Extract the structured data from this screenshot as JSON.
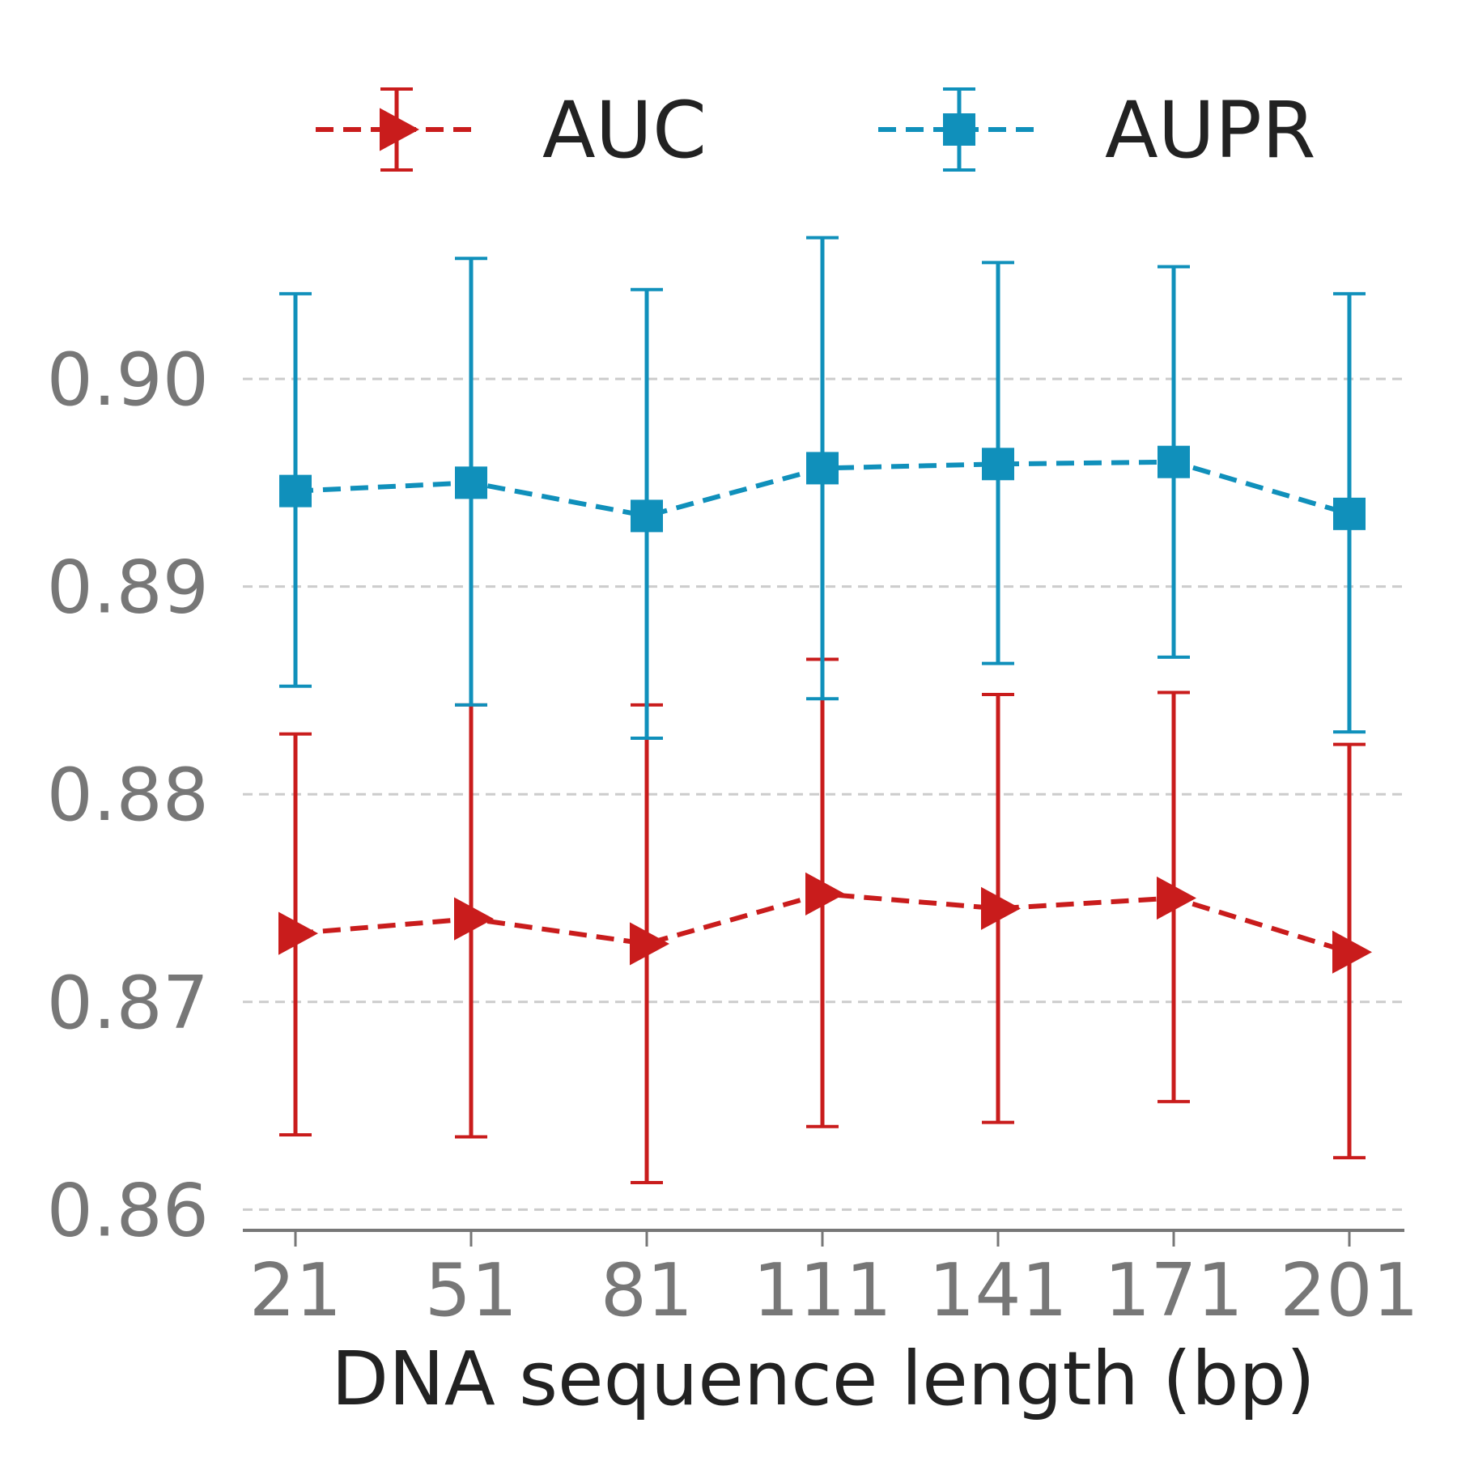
{
  "chart_data": {
    "type": "line",
    "xlabel": "DNA sequence length (bp)",
    "ylabel": "",
    "categories": [
      "21",
      "51",
      "81",
      "111",
      "141",
      "171",
      "201"
    ],
    "ylim": [
      0.859,
      0.9085
    ],
    "yticks": [
      "0.86",
      "0.87",
      "0.88",
      "0.89",
      "0.90"
    ],
    "ytick_values": [
      0.86,
      0.87,
      0.88,
      0.89,
      0.9
    ],
    "grid": "horizontal dashed",
    "legend_placement": "top",
    "series": [
      {
        "name": "AUC",
        "color": "#c91c1c",
        "marker": "triangle-right",
        "line_style": "dashed",
        "values": [
          0.8733,
          0.874,
          0.8728,
          0.8752,
          0.8745,
          0.875,
          0.8724
        ],
        "err_low": [
          0.8636,
          0.8635,
          0.8613,
          0.864,
          0.8642,
          0.8652,
          0.8625
        ],
        "err_high": [
          0.8829,
          0.8843,
          0.8843,
          0.8865,
          0.8848,
          0.8849,
          0.8824
        ]
      },
      {
        "name": "AUPR",
        "color": "#1090bb",
        "marker": "square",
        "line_style": "dashed",
        "values": [
          0.8946,
          0.895,
          0.8934,
          0.8957,
          0.8959,
          0.896,
          0.8935
        ],
        "err_low": [
          0.8852,
          0.8843,
          0.8827,
          0.8846,
          0.8863,
          0.8866,
          0.883
        ],
        "err_high": [
          0.9041,
          0.9058,
          0.9043,
          0.9068,
          0.9056,
          0.9054,
          0.9041
        ]
      }
    ]
  }
}
